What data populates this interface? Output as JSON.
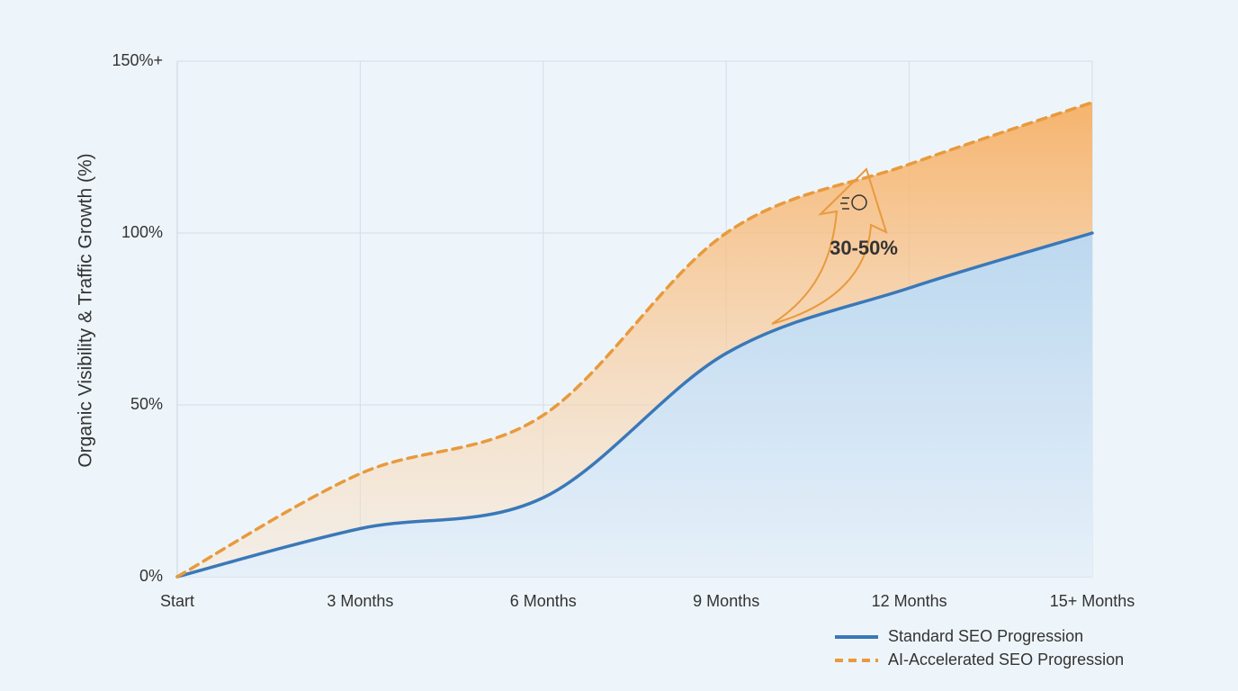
{
  "chart_data": {
    "type": "line",
    "y_label": "Organic Visibility & Traffic Growth (%)",
    "categories": [
      "Start",
      "3 Months",
      "6 Months",
      "9 Months",
      "12 Months",
      "15+ Months"
    ],
    "series": [
      {
        "name": "Standard SEO Progression",
        "color": "#3a78b8",
        "style": "solid",
        "values": [
          0,
          14,
          23,
          65,
          84,
          100
        ]
      },
      {
        "name": "AI-Accelerated SEO Progression",
        "color": "#e89a3c",
        "style": "dashed",
        "values": [
          0,
          30,
          47,
          100,
          120,
          138
        ]
      }
    ],
    "ylim": [
      0,
      150
    ],
    "yticks": [
      {
        "value": 0,
        "label": "0%"
      },
      {
        "value": 50,
        "label": "50%"
      },
      {
        "value": 100,
        "label": "100%"
      },
      {
        "value": 150,
        "label": "150%+"
      }
    ],
    "grid": true,
    "annotation": "30-50%",
    "legend": "bottom-right"
  }
}
